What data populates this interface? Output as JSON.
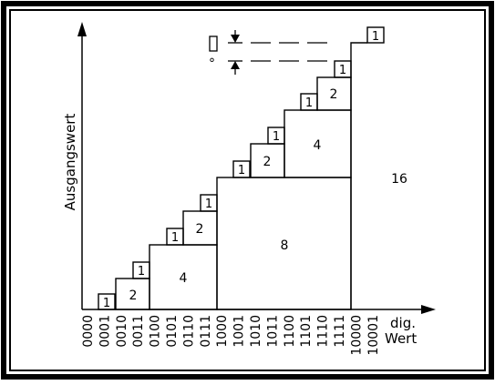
{
  "diagram": {
    "y_axis_label": "Ausgangswert",
    "x_axis_label_line1": "dig.",
    "x_axis_label_line2": "Wert",
    "x_ticks": [
      "0000",
      "0001",
      "0010",
      "0011",
      "0100",
      "0101",
      "0110",
      "0111",
      "1000",
      "1001",
      "1010",
      "1011",
      "1100",
      "1101",
      "1110",
      "1111",
      "10000",
      "10001"
    ],
    "step_labels": {
      "one": "1",
      "two": "2",
      "four": "4",
      "eight": "8",
      "sixteen": "16"
    },
    "warning_symbol": "!",
    "degree_symbol": "°"
  }
}
